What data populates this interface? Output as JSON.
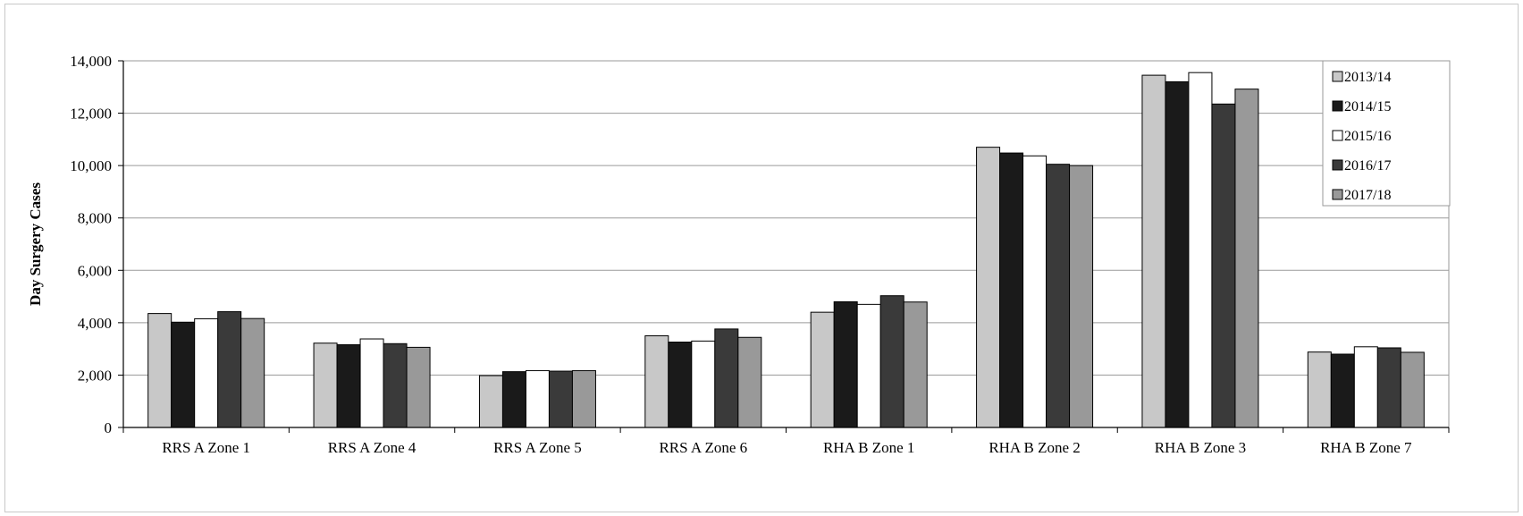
{
  "chart_data": {
    "type": "bar",
    "title": "",
    "xlabel": "",
    "ylabel": "Day Surgery Cases",
    "ylim": [
      0,
      14000
    ],
    "yticks": [
      0,
      2000,
      4000,
      6000,
      8000,
      10000,
      12000,
      14000
    ],
    "ytick_labels": [
      "0",
      "2,000",
      "4,000",
      "6,000",
      "8,000",
      "10,000",
      "12,000",
      "14,000"
    ],
    "grid": true,
    "legend_position": "top-right",
    "categories": [
      "RRS A Zone 1",
      "RRS A Zone 4",
      "RRS A Zone 5",
      "RRS A Zone 6",
      "RHA B Zone 1",
      "RHA B Zone 2",
      "RHA B Zone 3",
      "RHA B Zone 7"
    ],
    "series": [
      {
        "name": "2013/14",
        "color": "#c8c8c8",
        "values": [
          4350,
          3220,
          1980,
          3500,
          4400,
          10700,
          13450,
          2880
        ]
      },
      {
        "name": "2014/15",
        "color": "#1a1a1a",
        "values": [
          4020,
          3160,
          2130,
          3260,
          4800,
          10480,
          13200,
          2800
        ]
      },
      {
        "name": "2015/16",
        "color": "#ffffff",
        "values": [
          4150,
          3380,
          2170,
          3300,
          4700,
          10370,
          13550,
          3080
        ]
      },
      {
        "name": "2016/17",
        "color": "#3a3a3a",
        "values": [
          4420,
          3200,
          2150,
          3760,
          5030,
          10050,
          12350,
          3040
        ]
      },
      {
        "name": "2017/18",
        "color": "#999999",
        "values": [
          4160,
          3060,
          2170,
          3440,
          4790,
          10000,
          12920,
          2870
        ]
      }
    ]
  }
}
